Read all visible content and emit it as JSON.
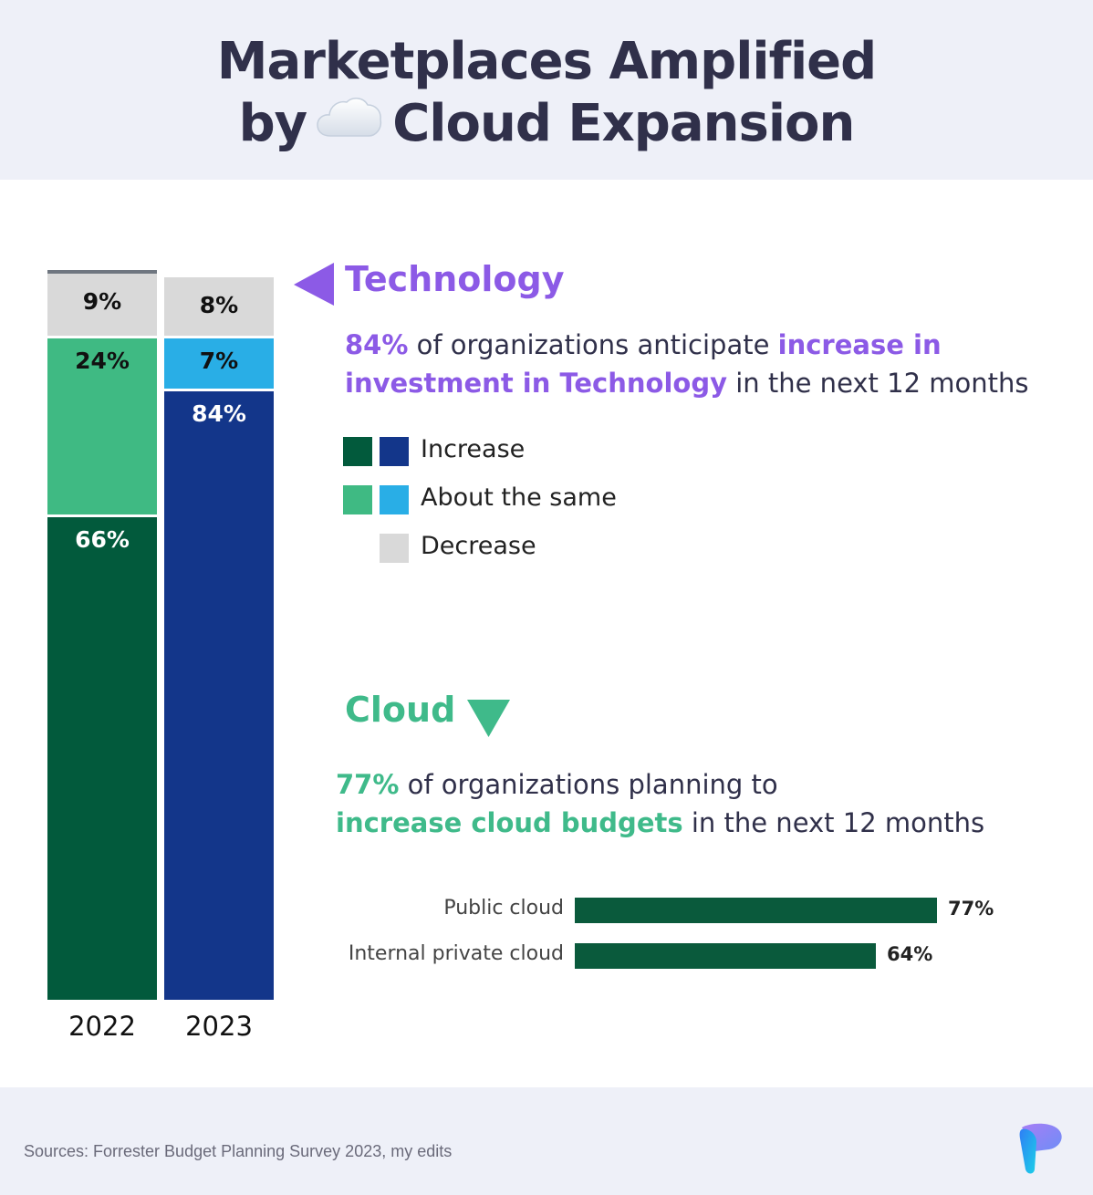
{
  "title": {
    "line1": "Marketplaces Amplified",
    "line2_pre": "by",
    "line2_post": "Cloud Expansion"
  },
  "colors": {
    "increase_2022": "#025a3c",
    "same_2022": "#3fba83",
    "increase_2023": "#13368a",
    "same_2023": "#29aee6",
    "decrease": "#d9d9d9",
    "technology": "#8c5ae6",
    "cloud": "#3fba8a"
  },
  "chart_data": [
    {
      "type": "bar",
      "stacked": true,
      "categories": [
        "2022",
        "2023"
      ],
      "series": [
        {
          "name": "Increase",
          "values": [
            66,
            84
          ]
        },
        {
          "name": "About the same",
          "values": [
            24,
            7
          ]
        },
        {
          "name": "Decrease",
          "values": [
            9,
            8
          ]
        }
      ],
      "value_labels": {
        "2022": {
          "increase": "66%",
          "same": "24%",
          "decrease": "9%"
        },
        "2023": {
          "increase": "84%",
          "same": "7%",
          "decrease": "8%"
        }
      },
      "legend": [
        "Increase",
        "About the same",
        "Decrease"
      ]
    },
    {
      "type": "bar",
      "orientation": "horizontal",
      "categories": [
        "Public cloud",
        "Internal private cloud"
      ],
      "values": [
        77,
        64
      ],
      "value_labels": [
        "77%",
        "64%"
      ]
    }
  ],
  "technology": {
    "title": "Technology",
    "stat": "84%",
    "text1": " of organizations anticipate ",
    "highlight1": "increase in",
    "highlight2": "investment in Technology",
    "text2": " in the next 12 months"
  },
  "cloud": {
    "title": "Cloud",
    "stat": "77%",
    "text1": " of organizations planning to",
    "highlight": "increase cloud budgets",
    "text2": " in the next 12 months"
  },
  "footer": {
    "source": "Sources: Forrester Budget Planning Survey 2023, my edits"
  }
}
